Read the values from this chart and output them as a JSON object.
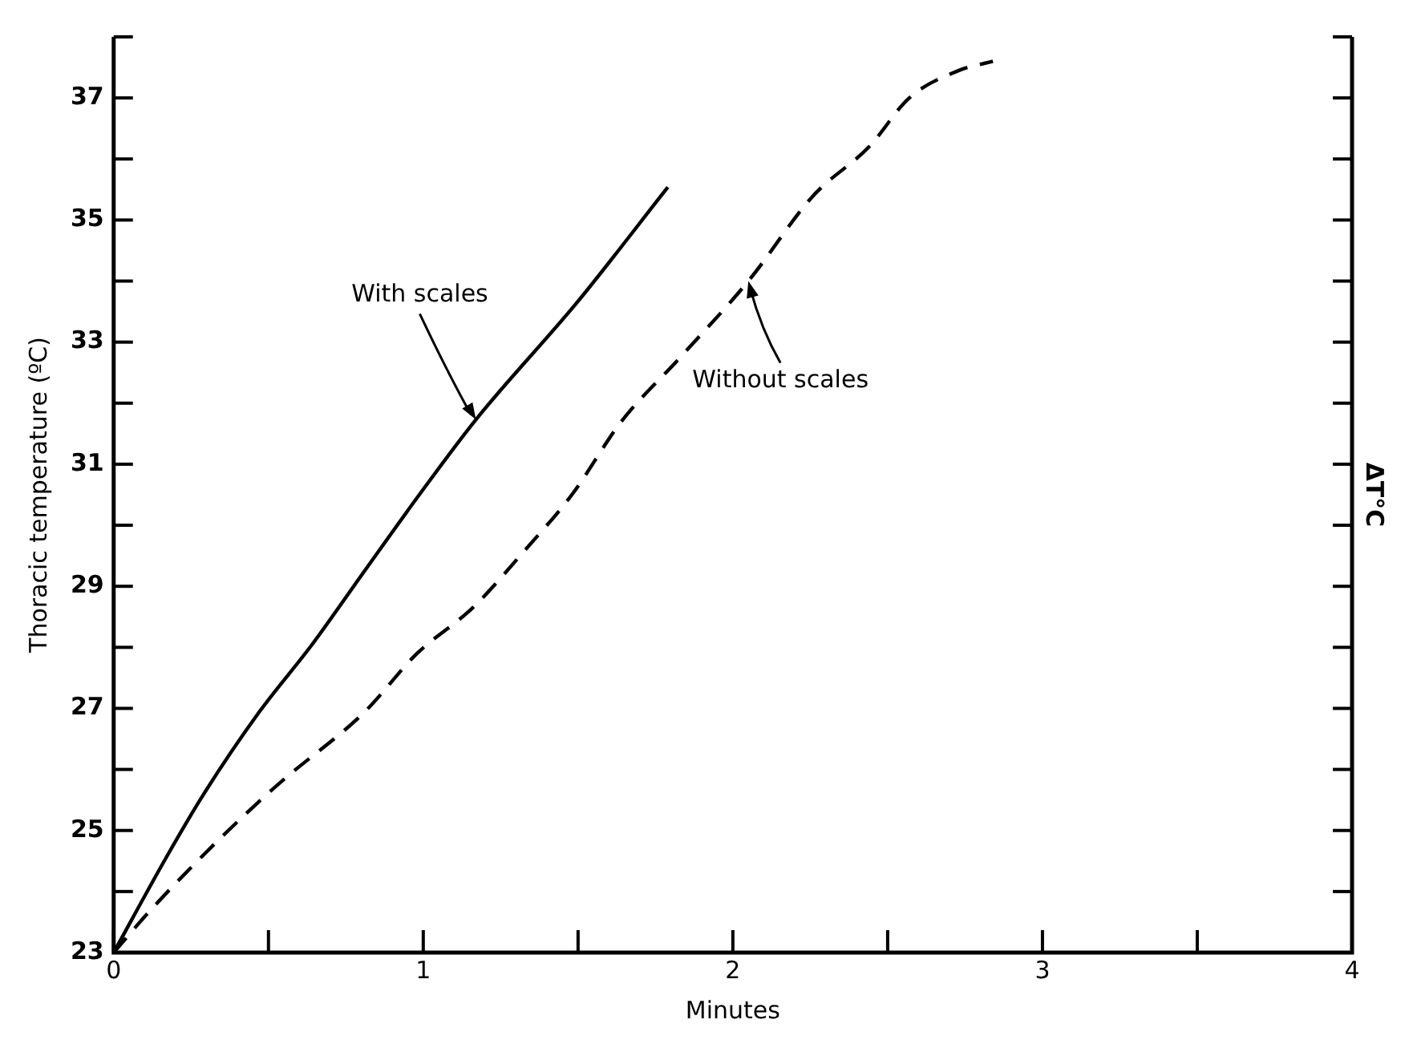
{
  "chart_data": {
    "type": "line",
    "xlabel": "Minutes",
    "ylabel": "Thoracic temperature (ºC)",
    "y2label": "ΔT°C",
    "xlim": [
      0,
      4
    ],
    "ylim": [
      23,
      38
    ],
    "xticks": [
      0,
      {
        "value": 0.5,
        "label": null
      },
      1,
      {
        "value": 1.5,
        "label": null
      },
      2,
      {
        "value": 2.5,
        "label": null
      },
      3,
      {
        "value": 3.5,
        "label": null
      },
      4
    ],
    "yticks": [
      23,
      {
        "value": 24,
        "label": null
      },
      25,
      {
        "value": 26,
        "label": null
      },
      27,
      {
        "value": 28,
        "label": null
      },
      29,
      {
        "value": 30,
        "label": null
      },
      31,
      {
        "value": 32,
        "label": null
      },
      33,
      {
        "value": 34,
        "label": null
      },
      35,
      {
        "value": 36,
        "label": null
      },
      37,
      {
        "value": 38,
        "label": null
      }
    ],
    "grid": false,
    "legend": false,
    "marker": "none",
    "series": [
      {
        "name": "With scales",
        "color": "#000000",
        "line_style": "solid",
        "x": [
          0,
          0.17,
          0.29,
          0.47,
          0.64,
          0.81,
          0.98,
          1.17,
          1.5,
          1.79
        ],
        "values": [
          23,
          24.56,
          25.59,
          26.94,
          28.04,
          29.25,
          30.45,
          31.73,
          33.67,
          35.54
        ]
      },
      {
        "name": "Without scales",
        "color": "#000000",
        "line_style": "dashed",
        "x": [
          0,
          0.12,
          0.33,
          0.53,
          0.81,
          0.98,
          1.16,
          1.33,
          1.48,
          1.64,
          1.83,
          2.05,
          2.26,
          2.44,
          2.57,
          2.73,
          2.84
        ],
        "values": [
          23,
          23.7,
          24.8,
          25.75,
          26.94,
          27.9,
          28.65,
          29.6,
          30.5,
          31.7,
          32.75,
          34.0,
          35.4,
          36.2,
          37.0,
          37.45,
          37.6
        ]
      }
    ]
  }
}
